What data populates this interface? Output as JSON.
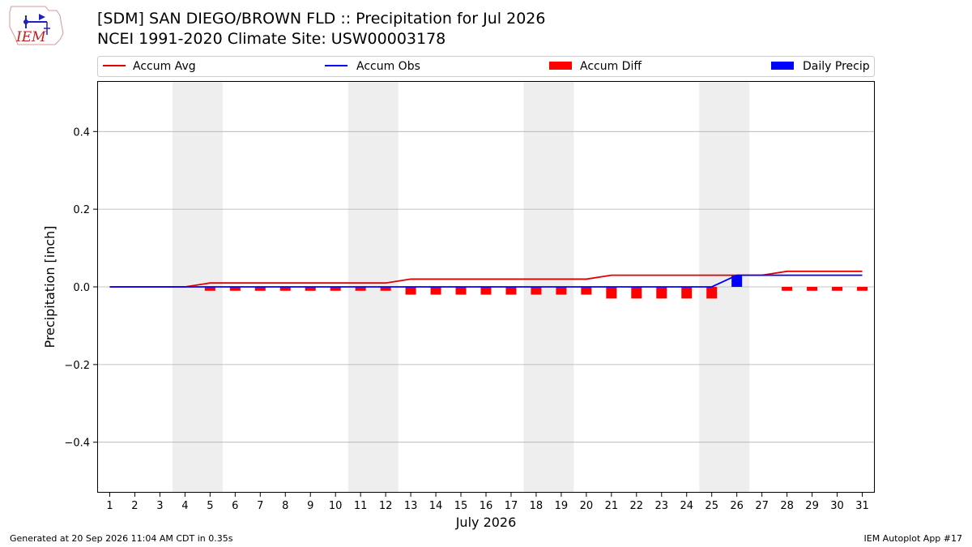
{
  "header": {
    "title_line1": "[SDM] SAN DIEGO/BROWN FLD :: Precipitation for Jul 2026",
    "title_line2": "NCEI 1991-2020 Climate Site: USW00003178",
    "logo_text": "IEM"
  },
  "footer": {
    "generated": "Generated at 20 Sep 2026 11:04 AM CDT in 0.35s",
    "app": "IEM Autoplot App #17"
  },
  "colors": {
    "accum_avg": "#e00000",
    "accum_obs": "#0000ff",
    "accum_diff": "#ff0000",
    "daily_precip": "#0000ff",
    "weekend_band": "#eeeeee",
    "grid": "#b0b0b0"
  },
  "chart_data": {
    "type": "bar",
    "xlabel": "July 2026",
    "ylabel": "Precipitation [inch]",
    "ylim": [
      -0.53,
      0.53
    ],
    "xlim": [
      0.5,
      31.5
    ],
    "yticks": [
      -0.4,
      -0.2,
      0.0,
      0.2,
      0.4
    ],
    "ytick_labels": [
      "−0.4",
      "−0.2",
      "0.0",
      "0.2",
      "0.4"
    ],
    "x": [
      1,
      2,
      3,
      4,
      5,
      6,
      7,
      8,
      9,
      10,
      11,
      12,
      13,
      14,
      15,
      16,
      17,
      18,
      19,
      20,
      21,
      22,
      23,
      24,
      25,
      26,
      27,
      28,
      29,
      30,
      31
    ],
    "xtick_labels": [
      "1",
      "2",
      "3",
      "4",
      "5",
      "6",
      "7",
      "8",
      "9",
      "10",
      "11",
      "12",
      "13",
      "14",
      "15",
      "16",
      "17",
      "18",
      "19",
      "20",
      "21",
      "22",
      "23",
      "24",
      "25",
      "26",
      "27",
      "28",
      "29",
      "30",
      "31"
    ],
    "grid": "horizontal",
    "legend_position": "top",
    "legend": [
      "Accum Avg",
      "Accum Obs",
      "Accum Diff",
      "Daily Precip"
    ],
    "weekend_bands": [
      [
        4,
        5
      ],
      [
        11,
        12
      ],
      [
        18,
        19
      ],
      [
        25,
        26
      ]
    ],
    "series": [
      {
        "name": "Accum Avg",
        "kind": "line",
        "values": [
          0,
          0,
          0,
          0,
          0.01,
          0.01,
          0.01,
          0.01,
          0.01,
          0.01,
          0.01,
          0.01,
          0.02,
          0.02,
          0.02,
          0.02,
          0.02,
          0.02,
          0.02,
          0.02,
          0.03,
          0.03,
          0.03,
          0.03,
          0.03,
          0.03,
          0.03,
          0.04,
          0.04,
          0.04,
          0.04
        ]
      },
      {
        "name": "Accum Obs",
        "kind": "line",
        "values": [
          0,
          0,
          0,
          0,
          0,
          0,
          0,
          0,
          0,
          0,
          0,
          0,
          0,
          0,
          0,
          0,
          0,
          0,
          0,
          0,
          0,
          0,
          0,
          0,
          0,
          0.03,
          0.03,
          0.03,
          0.03,
          0.03,
          0.03
        ]
      },
      {
        "name": "Accum Diff",
        "kind": "bar",
        "values": [
          0,
          0,
          0,
          0,
          -0.01,
          -0.01,
          -0.01,
          -0.01,
          -0.01,
          -0.01,
          -0.01,
          -0.01,
          -0.02,
          -0.02,
          -0.02,
          -0.02,
          -0.02,
          -0.02,
          -0.02,
          -0.02,
          -0.03,
          -0.03,
          -0.03,
          -0.03,
          -0.03,
          0,
          0,
          -0.01,
          -0.01,
          -0.01,
          -0.01
        ]
      },
      {
        "name": "Daily Precip",
        "kind": "bar",
        "values": [
          0,
          0,
          0,
          0,
          0,
          0,
          0,
          0,
          0,
          0,
          0,
          0,
          0,
          0,
          0,
          0,
          0,
          0,
          0,
          0,
          0,
          0,
          0,
          0,
          0,
          0.03,
          0,
          0,
          0,
          0,
          0
        ]
      }
    ]
  }
}
